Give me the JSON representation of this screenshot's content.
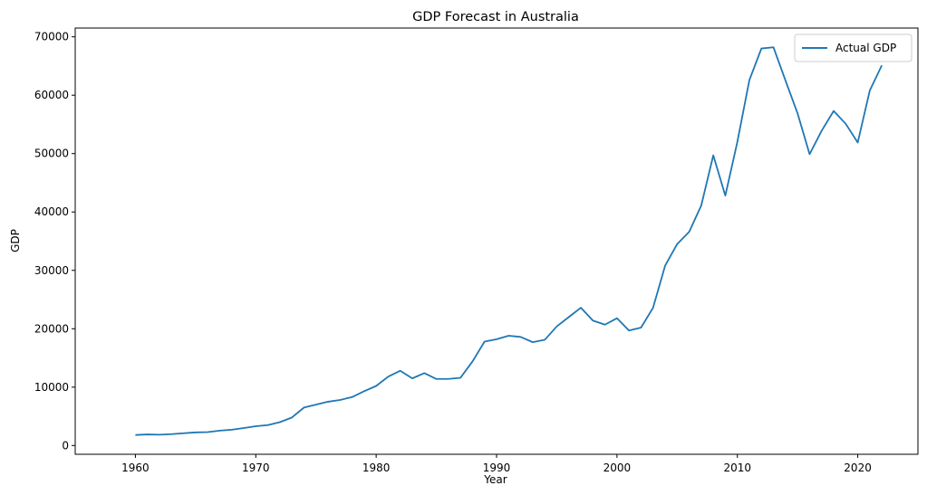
{
  "chart_data": {
    "type": "line",
    "title": "GDP Forecast in Australia",
    "xlabel": "Year",
    "ylabel": "GDP",
    "xlim": [
      1955,
      2025
    ],
    "ylim": [
      -1500,
      71500
    ],
    "xticks": [
      1960,
      1970,
      1980,
      1990,
      2000,
      2010,
      2020
    ],
    "yticks": [
      0,
      10000,
      20000,
      30000,
      40000,
      50000,
      60000,
      70000
    ],
    "grid": false,
    "legend_position": "top-right",
    "series": [
      {
        "name": "Actual GDP",
        "color": "#1f77b4",
        "x": [
          1960,
          1961,
          1962,
          1963,
          1964,
          1965,
          1966,
          1967,
          1968,
          1969,
          1970,
          1971,
          1972,
          1973,
          1974,
          1975,
          1976,
          1977,
          1978,
          1979,
          1980,
          1981,
          1982,
          1983,
          1984,
          1985,
          1986,
          1987,
          1988,
          1989,
          1990,
          1991,
          1992,
          1993,
          1994,
          1995,
          1996,
          1997,
          1998,
          1999,
          2000,
          2001,
          2002,
          2003,
          2004,
          2005,
          2006,
          2007,
          2008,
          2009,
          2010,
          2011,
          2012,
          2013,
          2014,
          2015,
          2016,
          2017,
          2018,
          2019,
          2020,
          2021,
          2022
        ],
        "y": [
          1800,
          1900,
          1850,
          1950,
          2100,
          2250,
          2300,
          2550,
          2700,
          3000,
          3300,
          3500,
          4000,
          4800,
          6500,
          7000,
          7500,
          7800,
          8300,
          9300,
          10200,
          11800,
          12800,
          11500,
          12400,
          11400,
          11400,
          11600,
          14400,
          17800,
          18200,
          18800,
          18600,
          17700,
          18100,
          20400,
          22000,
          23600,
          21400,
          20700,
          21800,
          19700,
          20200,
          23600,
          30800,
          34500,
          36600,
          41100,
          49700,
          42800,
          52000,
          62600,
          68000,
          68200,
          62500,
          56900,
          49900,
          53900,
          57300,
          55100,
          51900,
          60800,
          65100
        ]
      }
    ]
  }
}
